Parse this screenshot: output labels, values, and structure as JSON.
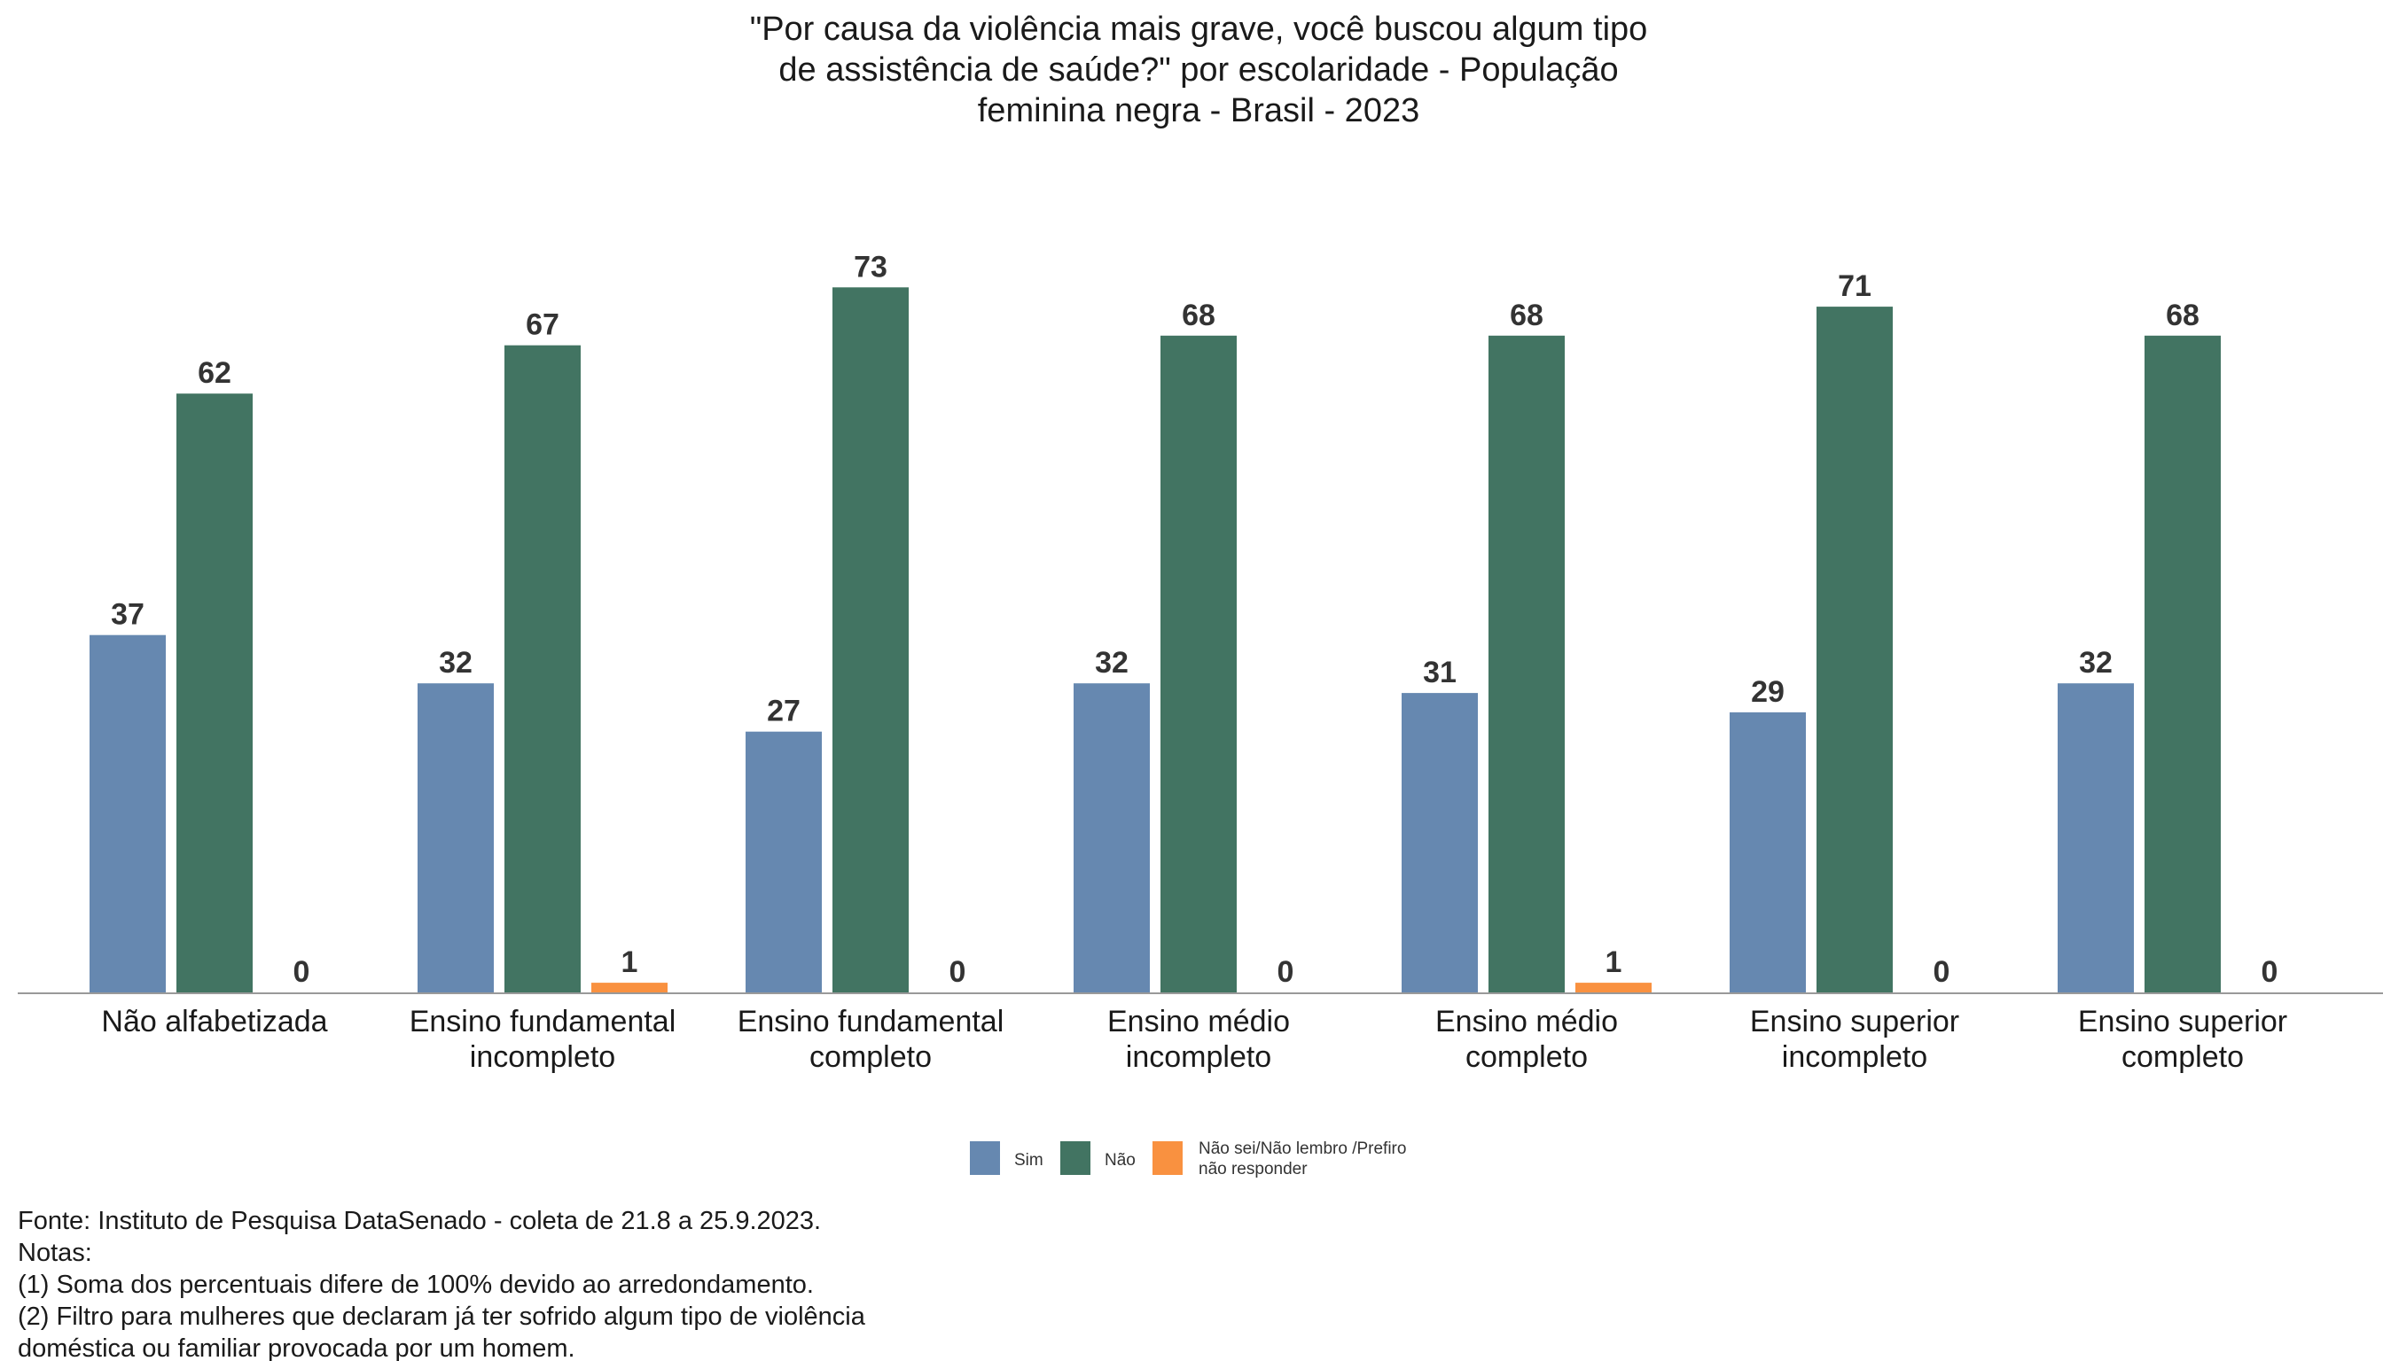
{
  "chart_data": {
    "type": "bar",
    "title": [
      "\"Por causa da violência mais grave, você buscou algum tipo",
      "de assistência de saúde?\" por escolaridade - População",
      "feminina negra - Brasil - 2023"
    ],
    "categories": [
      [
        "Não alfabetizada"
      ],
      [
        "Ensino fundamental",
        "incompleto"
      ],
      [
        "Ensino fundamental",
        "completo"
      ],
      [
        "Ensino médio",
        "incompleto"
      ],
      [
        "Ensino médio",
        "completo"
      ],
      [
        "Ensino superior",
        "incompleto"
      ],
      [
        "Ensino superior",
        "completo"
      ]
    ],
    "series": [
      {
        "name": "Sim",
        "color": "#6688b0",
        "values": [
          37,
          32,
          27,
          32,
          31,
          29,
          32
        ]
      },
      {
        "name": "Não",
        "color": "#427462",
        "values": [
          62,
          67,
          73,
          68,
          68,
          71,
          68
        ]
      },
      {
        "name": "Não sei/Não lembro /Prefiro não responder",
        "legend_lines": [
          "Não sei/Não lembro /Prefiro",
          "não responder"
        ],
        "color": "#f99140",
        "values": [
          0,
          1,
          0,
          0,
          1,
          0,
          0
        ]
      }
    ],
    "ylim": [
      0,
      80
    ],
    "grid": false,
    "legend_position": "bottom"
  },
  "notes": [
    "Fonte: Instituto de Pesquisa DataSenado - coleta de 21.8 a 25.9.2023.",
    "Notas:",
    "(1) Soma dos percentuais difere de 100% devido ao arredondamento.",
    "(2) Filtro para mulheres que declaram já ter sofrido algum tipo de violência",
    "doméstica ou familiar provocada por um homem."
  ]
}
